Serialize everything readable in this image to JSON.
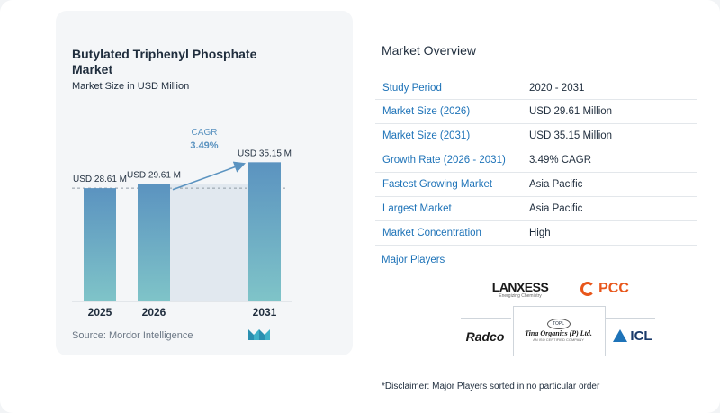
{
  "chart_data": {
    "type": "bar",
    "title": "Butylated Triphenyl Phosphate Market",
    "subtitle": "Market Size in USD Million",
    "categories": [
      "2025",
      "2026",
      "2031"
    ],
    "values": [
      28.61,
      29.61,
      35.15
    ],
    "data_labels": [
      "USD 28.61 M",
      "USD 29.61 M",
      "USD 35.15 M"
    ],
    "cagr_label": "CAGR",
    "cagr_value": "3.49%",
    "ylim": [
      0,
      40
    ],
    "xlabel": "",
    "ylabel": "",
    "bar_color_top": "#5b93c0",
    "bar_color_bottom": "#7fc4c8"
  },
  "source": "Source:  Mordor Intelligence",
  "overview": {
    "title": "Market Overview",
    "rows": [
      {
        "label": "Study Period",
        "value": "2020 - 2031"
      },
      {
        "label": "Market Size (2026)",
        "value": "USD 29.61 Million"
      },
      {
        "label": "Market Size (2031)",
        "value": "USD 35.15 Million"
      },
      {
        "label": "Growth Rate (2026 - 2031)",
        "value": "3.49% CAGR"
      },
      {
        "label": "Fastest Growing Market",
        "value": "Asia Pacific"
      },
      {
        "label": "Largest Market",
        "value": "Asia Pacific"
      },
      {
        "label": "Market Concentration",
        "value": "High"
      }
    ]
  },
  "players": {
    "title": "Major Players",
    "logos": {
      "lanxess": {
        "name": "LANXESS",
        "tagline": "Energizing Chemistry"
      },
      "pcc": {
        "name": "PCC"
      },
      "radco": {
        "name": "Radco"
      },
      "tina": {
        "name": "Tina Organics (P) Ltd.",
        "seal": "TOPL",
        "tagline": "AN ISO CERTIFIED COMPANY"
      },
      "icl": {
        "name": "ICL"
      }
    }
  },
  "disclaimer": "*Disclaimer: Major Players sorted in no particular order",
  "colors": {
    "accent_blue": "#1e73b8",
    "arrow": "#5b93c0",
    "cagr_text": "#5b93c0"
  }
}
